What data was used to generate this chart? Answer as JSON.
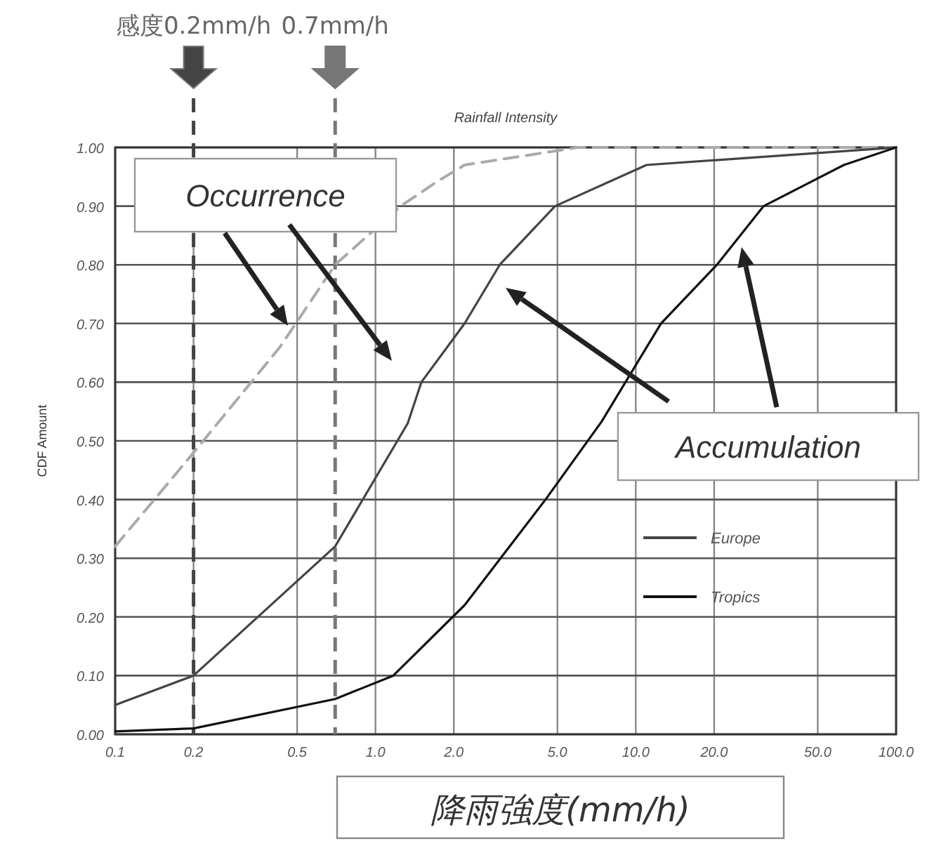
{
  "chart_data": {
    "type": "line",
    "title": "Rainfall Intensity",
    "xlabel": "降雨強度(mm/h)",
    "ylabel": "CDF Amount",
    "log": "x",
    "grid": true,
    "legend": "right",
    "marker": "none",
    "xlim": [
      0.1,
      100
    ],
    "ylim": [
      0,
      1
    ],
    "xticks": [
      0.1,
      0.2,
      {
        "value": 0.5,
        "label": "0.5"
      },
      {
        "value": 1,
        "label": "1.0"
      },
      {
        "value": 2,
        "label": "2.0"
      },
      {
        "value": 5,
        "label": "5.0"
      },
      {
        "value": 10,
        "label": "10.0"
      },
      {
        "value": 20,
        "label": "20.0"
      },
      {
        "value": 50,
        "label": "50.0"
      },
      {
        "value": 100,
        "label": "100.0"
      }
    ],
    "yticks": [
      {
        "value": 0,
        "label": "0.00"
      },
      {
        "value": 0.1,
        "label": "0.10"
      },
      {
        "value": 0.2,
        "label": "0.20"
      },
      {
        "value": 0.3,
        "label": "0.30"
      },
      {
        "value": 0.4,
        "label": "0.40"
      },
      {
        "value": 0.5,
        "label": "0.50"
      },
      {
        "value": 0.6,
        "label": "0.60"
      },
      {
        "value": 0.7,
        "label": "0.70"
      },
      {
        "value": 0.8,
        "label": "0.80"
      },
      {
        "value": 0.9,
        "label": "0.90"
      },
      {
        "value": 1,
        "label": "1.00"
      }
    ],
    "series": [
      {
        "color": "#aaaaaa",
        "line_style": "dashed",
        "x": [
          0.1,
          0.2,
          0.43,
          0.7,
          1.25,
          1.7,
          2.2,
          6,
          100
        ],
        "values": [
          0.32,
          0.48,
          0.66,
          0.8,
          0.9,
          0.94,
          0.97,
          1.0,
          1.0
        ]
      },
      {
        "name": "Europe",
        "color": "#444444",
        "line_style": "solid",
        "x": [
          0.1,
          0.2,
          0.7,
          1.33,
          1.5,
          2.2,
          3.0,
          4.9,
          11,
          100
        ],
        "values": [
          0.05,
          0.1,
          0.32,
          0.53,
          0.6,
          0.7,
          0.8,
          0.9,
          0.97,
          1.0
        ]
      },
      {
        "name": "Tropics",
        "color": "#111111",
        "line_style": "solid",
        "x": [
          0.1,
          0.2,
          0.7,
          1.17,
          2.2,
          4.5,
          7.4,
          12.5,
          20.5,
          31,
          63,
          100
        ],
        "values": [
          0.005,
          0.01,
          0.06,
          0.1,
          0.22,
          0.4,
          0.533,
          0.7,
          0.8,
          0.9,
          0.97,
          1.0
        ]
      }
    ],
    "ref_lines": [
      {
        "axis": "x",
        "value": 0.2,
        "label": "感度0.2mm/h",
        "color": "#444444",
        "line_style": "dashed"
      },
      {
        "axis": "x",
        "value": 0.7,
        "label": "0.7mm/h",
        "color": "#777777",
        "line_style": "dashed"
      }
    ],
    "annotations": [
      "Occurrence",
      "Accumulation"
    ]
  }
}
